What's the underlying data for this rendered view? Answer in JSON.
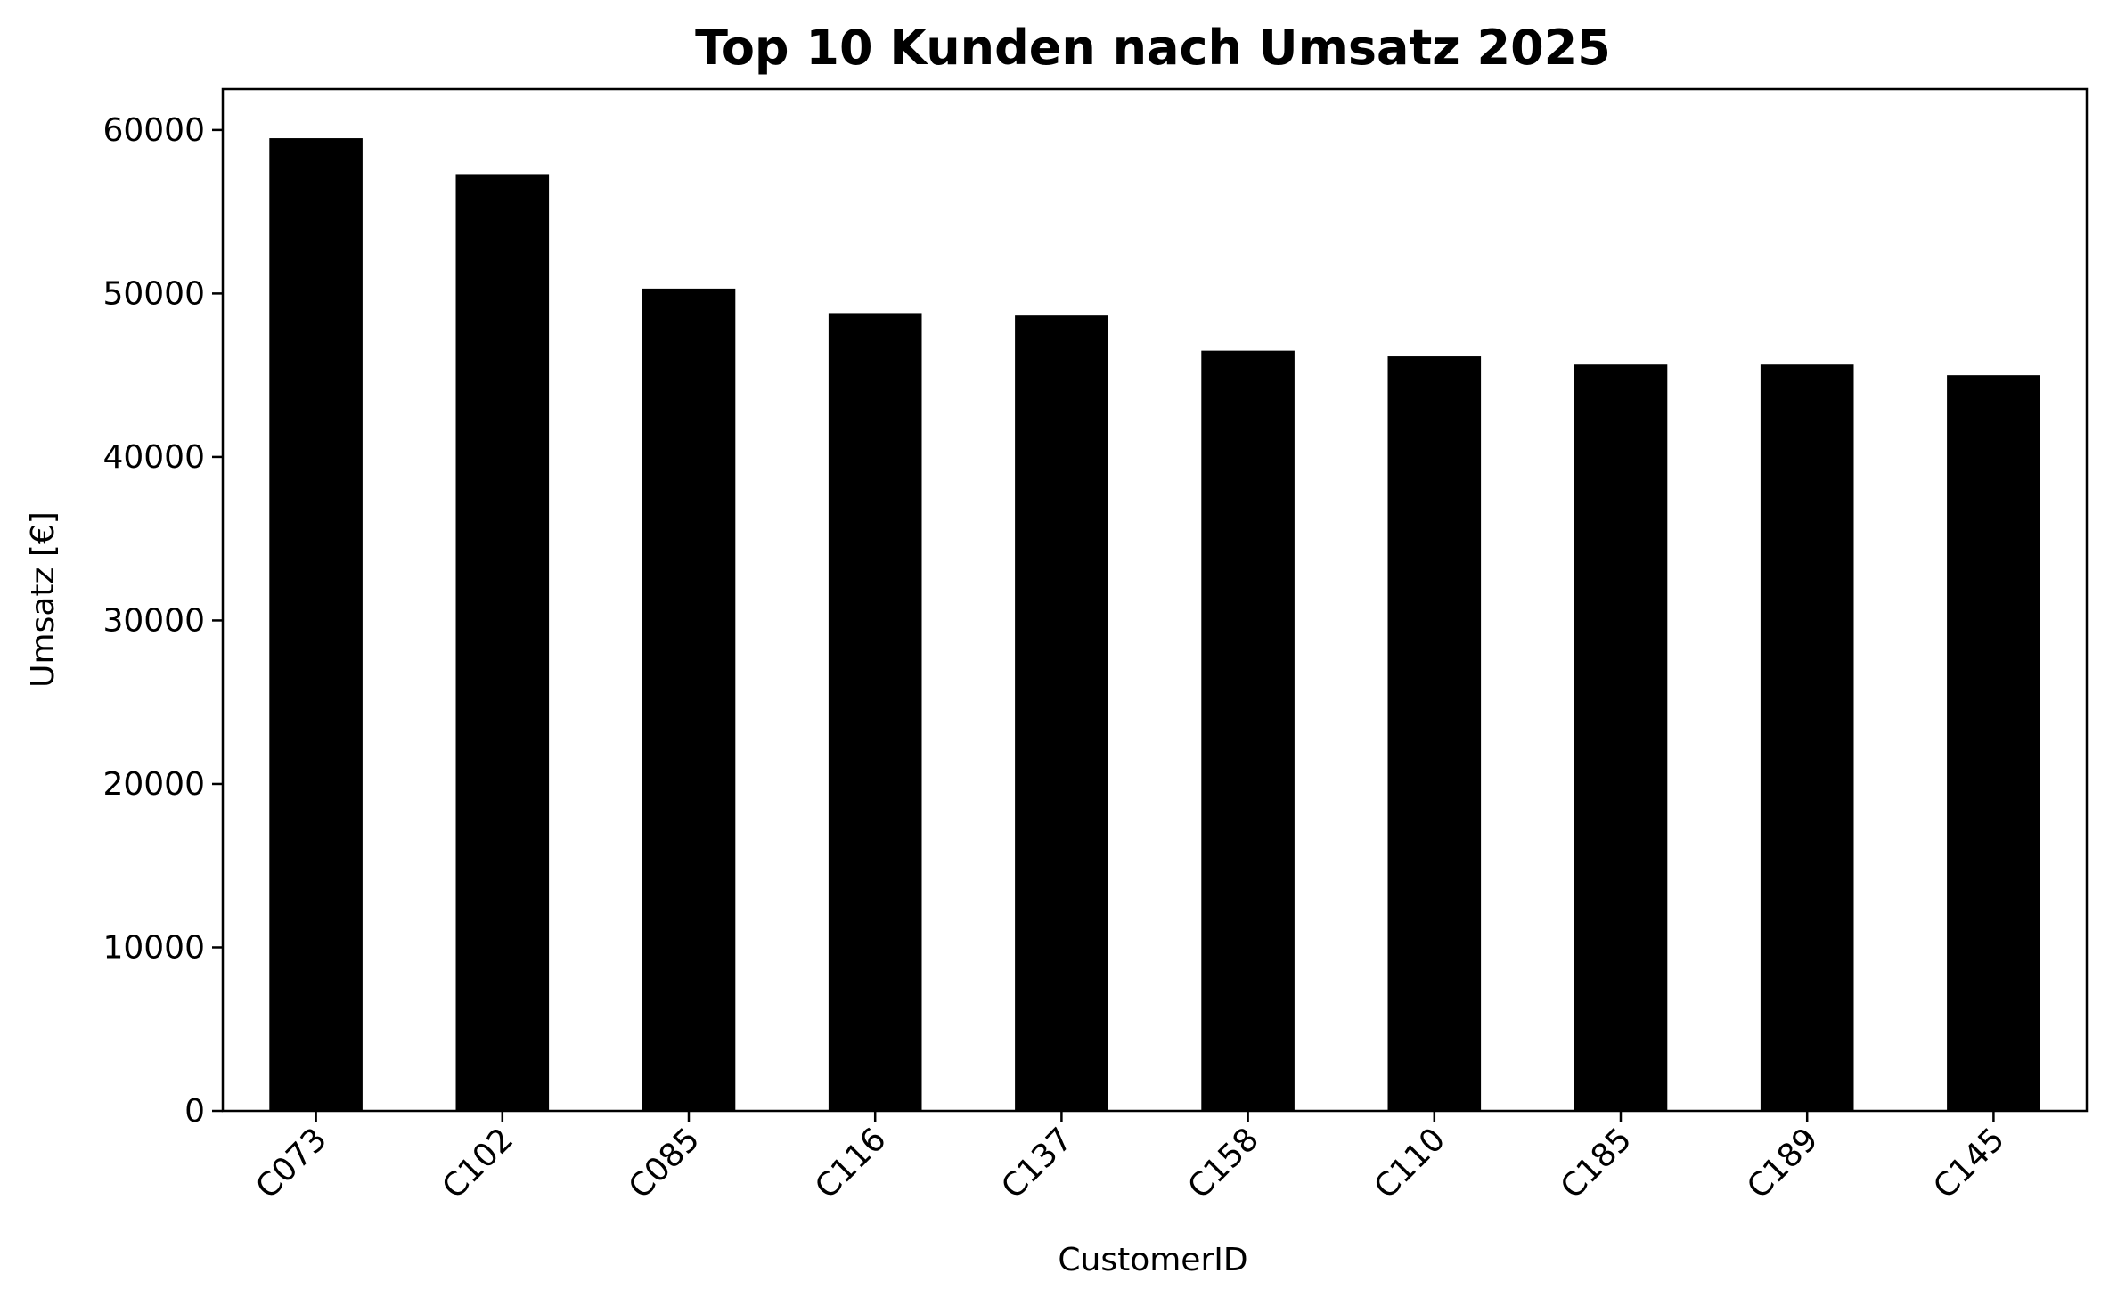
{
  "chart_data": {
    "type": "bar",
    "title": "Top 10 Kunden nach Umsatz 2025",
    "xlabel": "CustomerID",
    "ylabel": "Umsatz [€]",
    "categories": [
      "C073",
      "C102",
      "C085",
      "C116",
      "C137",
      "C158",
      "C110",
      "C185",
      "C189",
      "C145"
    ],
    "values": [
      59500,
      57300,
      50300,
      48800,
      48650,
      46500,
      46150,
      45650,
      45650,
      45000
    ],
    "ylim": [
      0,
      62500
    ],
    "yticks": [
      0,
      10000,
      20000,
      30000,
      40000,
      50000,
      60000
    ],
    "ytick_labels": [
      "0",
      "10000",
      "20000",
      "30000",
      "40000",
      "50000",
      "60000"
    ],
    "bar_color": "#000000",
    "grid": false,
    "legend": false
  }
}
